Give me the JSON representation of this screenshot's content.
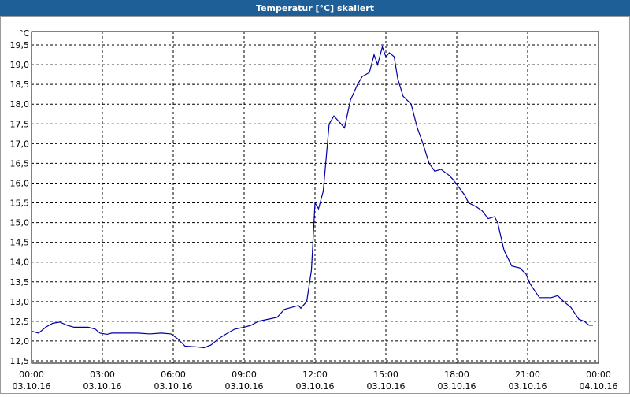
{
  "chart_data": {
    "type": "line",
    "title": "Temperatur [°C] skaliert",
    "unit": "°C",
    "x": [
      0,
      0.3,
      0.6,
      0.9,
      1.2,
      1.5,
      1.8,
      2.4,
      2.7,
      2.9,
      3.2,
      3.4,
      4.0,
      4.5,
      5.0,
      5.5,
      5.9,
      6.2,
      6.5,
      7.0,
      7.3,
      7.6,
      7.9,
      8.3,
      8.6,
      9.0,
      9.3,
      9.6,
      10.0,
      10.4,
      10.7,
      11.0,
      11.3,
      11.4,
      11.5,
      11.65,
      11.85,
      12.0,
      12.15,
      12.35,
      12.6,
      12.8,
      13.25,
      13.5,
      13.8,
      14.0,
      14.3,
      14.5,
      14.65,
      14.85,
      15.0,
      15.15,
      15.35,
      15.5,
      15.73,
      16.07,
      16.33,
      16.57,
      16.83,
      17.07,
      17.33,
      17.67,
      17.83,
      18.33,
      18.5,
      18.83,
      19.07,
      19.33,
      19.6,
      19.73,
      20.0,
      20.33,
      20.67,
      20.93,
      21.1,
      21.5,
      22.0,
      22.27,
      22.53,
      22.83,
      23.17,
      23.4,
      23.6,
      23.77
    ],
    "series": [
      {
        "name": "Temperatur",
        "color": "#0000a0",
        "values": [
          12.25,
          12.2,
          12.35,
          12.45,
          12.48,
          12.4,
          12.35,
          12.35,
          12.3,
          12.2,
          12.17,
          12.2,
          12.2,
          12.2,
          12.18,
          12.2,
          12.18,
          12.05,
          11.87,
          11.85,
          11.83,
          11.9,
          12.05,
          12.2,
          12.3,
          12.35,
          12.4,
          12.5,
          12.55,
          12.6,
          12.8,
          12.85,
          12.9,
          12.83,
          12.9,
          13.0,
          13.8,
          15.5,
          15.35,
          15.8,
          17.5,
          17.7,
          17.4,
          18.1,
          18.5,
          18.7,
          18.8,
          19.25,
          19.0,
          19.45,
          19.2,
          19.3,
          19.2,
          18.65,
          18.2,
          18.0,
          17.4,
          17.0,
          16.5,
          16.3,
          16.35,
          16.2,
          16.1,
          15.7,
          15.5,
          15.4,
          15.3,
          15.1,
          15.15,
          15.0,
          14.3,
          13.9,
          13.85,
          13.7,
          13.45,
          13.1,
          13.1,
          13.15,
          13.0,
          12.85,
          12.55,
          12.5,
          12.4,
          12.4
        ]
      }
    ],
    "xlim": [
      0,
      24
    ],
    "ylim": [
      11.44,
      19.84
    ],
    "xticks": [
      {
        "value": 0,
        "label": "00:00"
      },
      {
        "value": 3,
        "label": "03:00"
      },
      {
        "value": 6,
        "label": "06:00"
      },
      {
        "value": 9,
        "label": "09:00"
      },
      {
        "value": 12,
        "label": "12:00"
      },
      {
        "value": 15,
        "label": "15:00"
      },
      {
        "value": 18,
        "label": "18:00"
      },
      {
        "value": 21,
        "label": "21:00"
      },
      {
        "value": 24,
        "label": "00:00"
      }
    ],
    "xtick_dates": [
      "03.10.16",
      "03.10.16",
      "03.10.16",
      "03.10.16",
      "03.10.16",
      "03.10.16",
      "03.10.16",
      "03.10.16",
      "04.10.16"
    ],
    "yticks": [
      {
        "value": 11.5,
        "label": "11,5"
      },
      {
        "value": 12,
        "label": "12,0"
      },
      {
        "value": 12.5,
        "label": "12,5"
      },
      {
        "value": 13,
        "label": "13,0"
      },
      {
        "value": 13.5,
        "label": "13,5"
      },
      {
        "value": 14,
        "label": "14,0"
      },
      {
        "value": 14.5,
        "label": "14,5"
      },
      {
        "value": 15,
        "label": "15,0"
      },
      {
        "value": 15.5,
        "label": "15,5"
      },
      {
        "value": 16,
        "label": "16,0"
      },
      {
        "value": 16.5,
        "label": "16,5"
      },
      {
        "value": 17,
        "label": "17,0"
      },
      {
        "value": 17.5,
        "label": "17,5"
      },
      {
        "value": 18,
        "label": "18,0"
      },
      {
        "value": 18.5,
        "label": "18,5"
      },
      {
        "value": 19,
        "label": "19,0"
      },
      {
        "value": 19.5,
        "label": "19,5"
      }
    ],
    "grid": true
  }
}
